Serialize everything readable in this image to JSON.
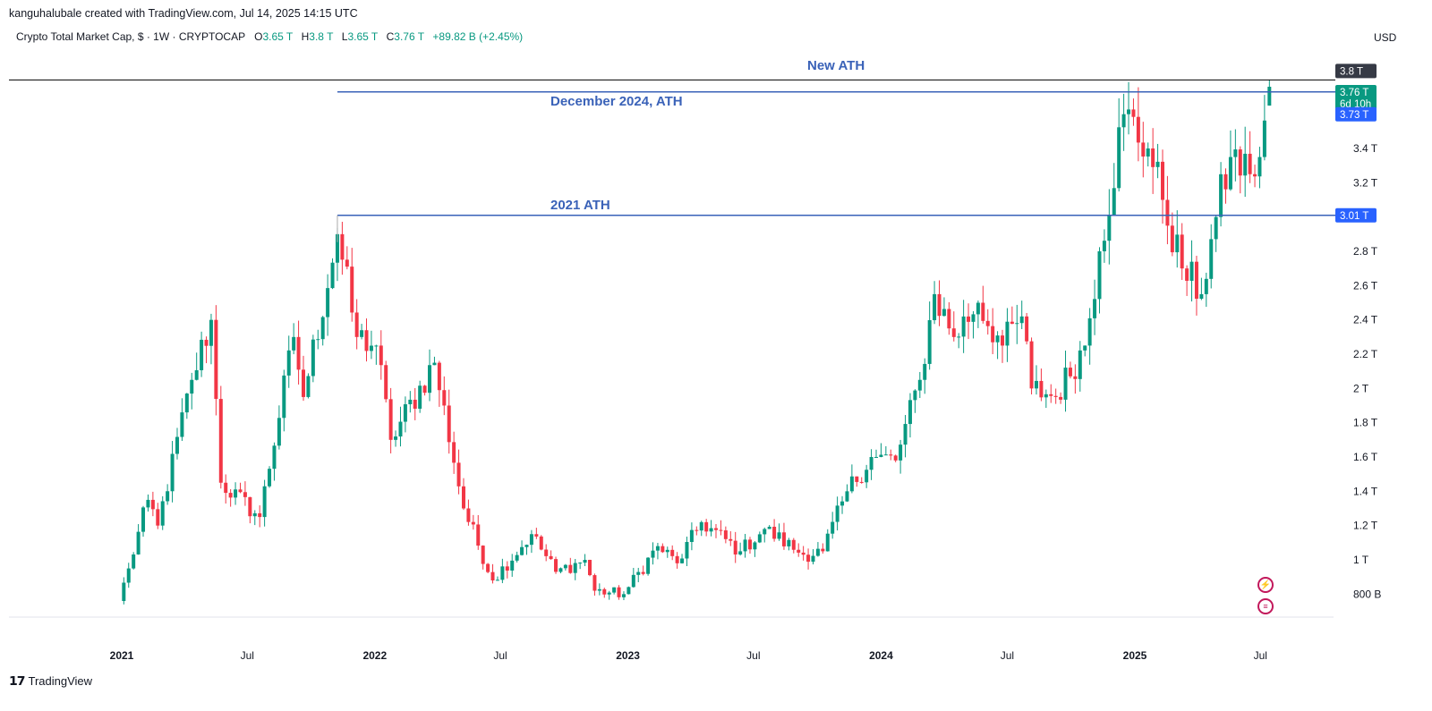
{
  "credit": "kanguhalubale created with TradingView.com, Jul 14, 2025 14:15 UTC",
  "legend": {
    "symbol": "Crypto Total Market Cap, $ · 1W · CRYPTOCAP",
    "o_label": "O",
    "o_value": "3.65 T",
    "h_label": "H",
    "h_value": "3.8 T",
    "l_label": "L",
    "l_value": "3.65 T",
    "c_label": "C",
    "c_value": "3.76 T",
    "change": "+89.82 B (+2.45%)"
  },
  "currency": "USD",
  "footer_brand": "TradingView",
  "annotations": {
    "new_ath": "New ATH",
    "dec_2024_ath": "December 2024, ATH",
    "ath_2021": "2021 ATH"
  },
  "price_tags": {
    "high": "3.8 T",
    "last": "3.76 T",
    "countdown": "6d 10h",
    "dec_level": "3.73 T",
    "ath_2021_level": "3.01 T"
  },
  "colors": {
    "up": "#089981",
    "down": "#f23645",
    "line_blue": "#3a62b8",
    "tag_blue": "#2962ff",
    "ath_line": "#000000"
  },
  "icons": [
    "lightning-icon",
    "us-flag-icon"
  ],
  "chart_data": {
    "type": "candlestick",
    "y_unit": "USD",
    "y_ticks": [
      "800 B",
      "1 T",
      "1.2 T",
      "1.4 T",
      "1.6 T",
      "1.8 T",
      "2 T",
      "2.2 T",
      "2.4 T",
      "2.6 T",
      "2.8 T",
      "3.2 T",
      "3.4 T"
    ],
    "y_tick_values": [
      0.8,
      1.0,
      1.2,
      1.4,
      1.6,
      1.8,
      2.0,
      2.2,
      2.4,
      2.6,
      2.8,
      3.2,
      3.4
    ],
    "x_ticks": [
      "2021",
      "Jul",
      "2022",
      "Jul",
      "2023",
      "Jul",
      "2024",
      "Jul",
      "2025",
      "Jul"
    ],
    "x_tick_dates": [
      "2021-01-01",
      "2021-07-01",
      "2022-01-01",
      "2022-07-01",
      "2023-01-01",
      "2023-07-01",
      "2024-01-01",
      "2024-07-01",
      "2025-01-01",
      "2025-07-01"
    ],
    "ylim": [
      0.7,
      3.85
    ],
    "horizontal_lines": [
      {
        "label": "New ATH",
        "value": 3.8
      },
      {
        "label": "December 2024, ATH",
        "value": 3.73,
        "start": "2021-11-08"
      },
      {
        "label": "2021 ATH",
        "value": 3.01,
        "start": "2021-11-08"
      }
    ],
    "last_candle": {
      "date": "2025-07-14",
      "open": 3.65,
      "high": 3.8,
      "low": 3.65,
      "close": 3.76
    },
    "anchors": [
      {
        "date": "2020-12-28",
        "price": 0.76
      },
      {
        "date": "2021-01-11",
        "price": 0.95
      },
      {
        "date": "2021-02-08",
        "price": 1.35
      },
      {
        "date": "2021-02-22",
        "price": 1.2
      },
      {
        "date": "2021-04-12",
        "price": 2.05
      },
      {
        "date": "2021-05-10",
        "price": 2.4
      },
      {
        "date": "2021-05-24",
        "price": 1.45
      },
      {
        "date": "2021-07-19",
        "price": 1.25
      },
      {
        "date": "2021-09-06",
        "price": 2.3
      },
      {
        "date": "2021-09-20",
        "price": 1.95
      },
      {
        "date": "2021-11-08",
        "price": 2.9
      },
      {
        "date": "2021-12-06",
        "price": 2.3
      },
      {
        "date": "2022-01-03",
        "price": 2.25
      },
      {
        "date": "2022-01-24",
        "price": 1.7
      },
      {
        "date": "2022-03-28",
        "price": 2.15
      },
      {
        "date": "2022-05-09",
        "price": 1.3
      },
      {
        "date": "2022-06-20",
        "price": 0.88
      },
      {
        "date": "2022-08-15",
        "price": 1.15
      },
      {
        "date": "2022-09-19",
        "price": 0.93
      },
      {
        "date": "2022-10-31",
        "price": 1.0
      },
      {
        "date": "2022-11-14",
        "price": 0.82
      },
      {
        "date": "2022-12-26",
        "price": 0.8
      },
      {
        "date": "2023-02-13",
        "price": 1.08
      },
      {
        "date": "2023-03-13",
        "price": 0.98
      },
      {
        "date": "2023-04-17",
        "price": 1.22
      },
      {
        "date": "2023-06-12",
        "price": 1.05
      },
      {
        "date": "2023-07-17",
        "price": 1.18
      },
      {
        "date": "2023-09-11",
        "price": 1.03
      },
      {
        "date": "2023-10-09",
        "price": 1.05
      },
      {
        "date": "2023-11-13",
        "price": 1.4
      },
      {
        "date": "2023-12-18",
        "price": 1.6
      },
      {
        "date": "2024-01-22",
        "price": 1.58
      },
      {
        "date": "2024-02-26",
        "price": 2.05
      },
      {
        "date": "2024-03-18",
        "price": 2.55
      },
      {
        "date": "2024-04-15",
        "price": 2.3
      },
      {
        "date": "2024-05-20",
        "price": 2.5
      },
      {
        "date": "2024-06-24",
        "price": 2.25
      },
      {
        "date": "2024-07-22",
        "price": 2.42
      },
      {
        "date": "2024-08-05",
        "price": 2.0
      },
      {
        "date": "2024-09-09",
        "price": 1.95
      },
      {
        "date": "2024-10-21",
        "price": 2.25
      },
      {
        "date": "2024-11-11",
        "price": 2.8
      },
      {
        "date": "2024-12-16",
        "price": 3.6
      },
      {
        "date": "2025-01-20",
        "price": 3.4
      },
      {
        "date": "2025-02-10",
        "price": 3.1
      },
      {
        "date": "2025-03-10",
        "price": 2.7
      },
      {
        "date": "2025-04-07",
        "price": 2.55
      },
      {
        "date": "2025-04-28",
        "price": 3.0
      },
      {
        "date": "2025-05-19",
        "price": 3.35
      },
      {
        "date": "2025-06-16",
        "price": 3.25
      },
      {
        "date": "2025-06-30",
        "price": 3.35
      },
      {
        "date": "2025-07-14",
        "price": 3.76
      }
    ]
  }
}
